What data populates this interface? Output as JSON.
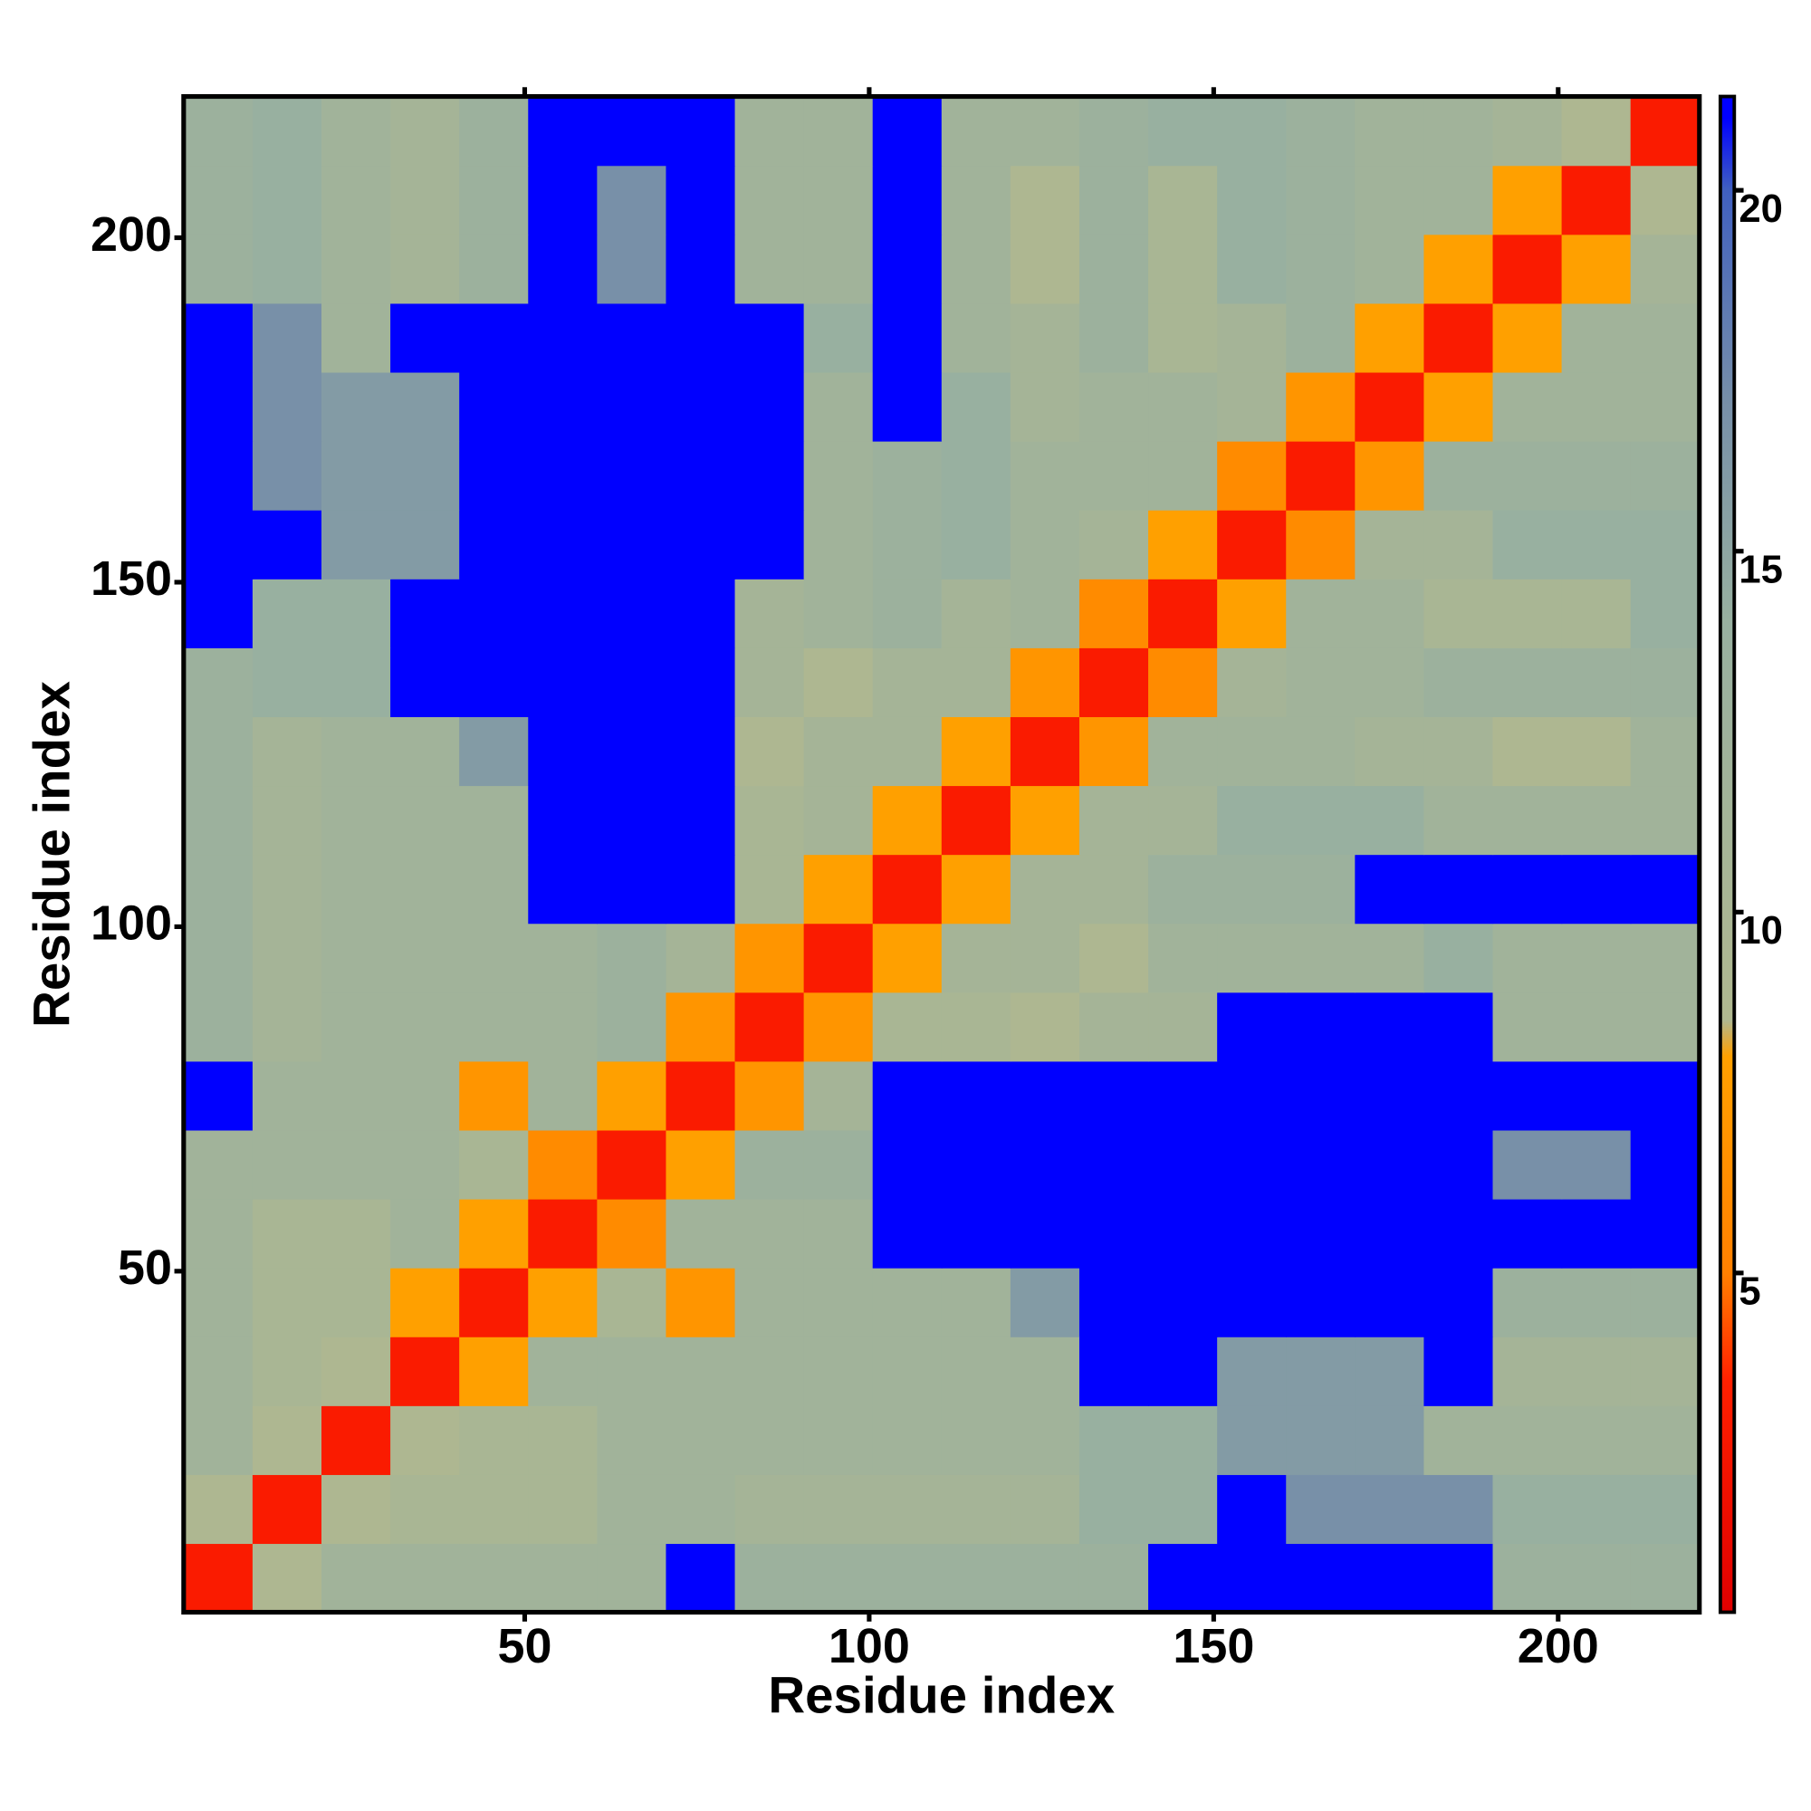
{
  "chart_data": {
    "type": "heatmap",
    "xlabel": "Residue index",
    "ylabel": "Residue index",
    "x_bins": [
      0.5,
      10.5,
      20.5,
      30.5,
      40.5,
      50.5,
      60.5,
      70.5,
      80.5,
      90.5,
      100.5,
      110.5,
      120.5,
      130.5,
      140.5,
      150.5,
      160.5,
      170.5,
      180.5,
      190.5,
      200.5,
      210.5,
      220.5
    ],
    "y_bins": [
      0.5,
      10.5,
      20.5,
      30.5,
      40.5,
      50.5,
      60.5,
      70.5,
      80.5,
      90.5,
      100.5,
      110.5,
      120.5,
      130.5,
      140.5,
      150.5,
      160.5,
      170.5,
      180.5,
      190.5,
      200.5,
      210.5,
      220.5
    ],
    "xlim": [
      0.5,
      220.5
    ],
    "ylim": [
      0.5,
      220.5
    ],
    "xticks": [
      50,
      100,
      150,
      200
    ],
    "yticks": [
      50,
      100,
      150,
      200
    ],
    "colorbar_lim": [
      0.3,
      21.3
    ],
    "colorbar_ticks": [
      5,
      10,
      15,
      20
    ],
    "colormap": [
      {
        "value": 0.3,
        "color": "#e00000"
      },
      {
        "value": 3.5,
        "color": "#ff2000"
      },
      {
        "value": 5,
        "color": "#ff8000"
      },
      {
        "value": 8,
        "color": "#ffa000"
      },
      {
        "value": 8.5,
        "color": "#b0b890"
      },
      {
        "value": 14,
        "color": "#98b0a0"
      },
      {
        "value": 17,
        "color": "#7890a8"
      },
      {
        "value": 20,
        "color": "#4060c0"
      },
      {
        "value": 21,
        "color": "#0000ff"
      },
      {
        "value": 21.3,
        "color": "#0000ff"
      }
    ],
    "values": [
      [
        3,
        9,
        12,
        12,
        12,
        12,
        12,
        21,
        13,
        13,
        13,
        13,
        13,
        13,
        21,
        21,
        21,
        21,
        21,
        13,
        13,
        13
      ],
      [
        9,
        3,
        9,
        10,
        10,
        10,
        12,
        12,
        11,
        11,
        11,
        11,
        11,
        14,
        14,
        21,
        17,
        17,
        17,
        14,
        14,
        14
      ],
      [
        12,
        9,
        3,
        9,
        10,
        10,
        12,
        12,
        12,
        12,
        12,
        12,
        12,
        14,
        14,
        16,
        16,
        16,
        12,
        12,
        12,
        12
      ],
      [
        12,
        10,
        9,
        3,
        8,
        12,
        12,
        12,
        12,
        12,
        12,
        12,
        12,
        21,
        21,
        16,
        16,
        16,
        21,
        11,
        11,
        11
      ],
      [
        12,
        10,
        10,
        8,
        3,
        8,
        10,
        7,
        12,
        12,
        12,
        12,
        16,
        21,
        21,
        21,
        21,
        21,
        21,
        13,
        13,
        13
      ],
      [
        12,
        10,
        10,
        12,
        8,
        3,
        6,
        12,
        12,
        12,
        21,
        21,
        21,
        21,
        21,
        21,
        21,
        21,
        21,
        21,
        21,
        21
      ],
      [
        12,
        12,
        12,
        12,
        10,
        6,
        3,
        8,
        13,
        13,
        21,
        21,
        21,
        21,
        21,
        21,
        21,
        21,
        21,
        17,
        17,
        21
      ],
      [
        21,
        12,
        12,
        12,
        7,
        12,
        8,
        3,
        7,
        11,
        21,
        21,
        21,
        21,
        21,
        21,
        21,
        21,
        21,
        21,
        21,
        21
      ],
      [
        13,
        11,
        12,
        12,
        12,
        12,
        13,
        7,
        3,
        7,
        10,
        10,
        9,
        11,
        11,
        21,
        21,
        21,
        21,
        12,
        12,
        12
      ],
      [
        13,
        11,
        12,
        12,
        12,
        12,
        13,
        11,
        7,
        3,
        8,
        11,
        11,
        9,
        12,
        12,
        12,
        12,
        14,
        12,
        12,
        12
      ],
      [
        13,
        11,
        12,
        12,
        12,
        21,
        21,
        21,
        10,
        8,
        3,
        8,
        11,
        11,
        13,
        13,
        13,
        21,
        21,
        21,
        21,
        21
      ],
      [
        13,
        11,
        12,
        12,
        12,
        21,
        21,
        21,
        10,
        11,
        8,
        3,
        8,
        11,
        11,
        14,
        14,
        14,
        12,
        12,
        12,
        12
      ],
      [
        13,
        11,
        12,
        12,
        16,
        21,
        21,
        21,
        9,
        11,
        11,
        8,
        3,
        7,
        12,
        12,
        12,
        11,
        11,
        9,
        9,
        12
      ],
      [
        13,
        14,
        14,
        21,
        21,
        21,
        21,
        21,
        11,
        9,
        11,
        11,
        7,
        3,
        6,
        11,
        12,
        12,
        13,
        13,
        13,
        13
      ],
      [
        21,
        14,
        14,
        21,
        21,
        21,
        21,
        21,
        11,
        12,
        13,
        11,
        12,
        6,
        3,
        8,
        12,
        12,
        10,
        10,
        10,
        14
      ],
      [
        21,
        21,
        16,
        16,
        21,
        21,
        21,
        21,
        21,
        12,
        13,
        14,
        12,
        11,
        8,
        3,
        6,
        11,
        11,
        14,
        14,
        14
      ],
      [
        21,
        17,
        16,
        16,
        21,
        21,
        21,
        21,
        21,
        12,
        13,
        14,
        12,
        12,
        12,
        6,
        3,
        7,
        13,
        13,
        13,
        13
      ],
      [
        21,
        17,
        16,
        16,
        21,
        21,
        21,
        21,
        21,
        12,
        21,
        14,
        11,
        12,
        12,
        11,
        7,
        3,
        8,
        12,
        12,
        12
      ],
      [
        21,
        17,
        12,
        21,
        21,
        21,
        21,
        21,
        21,
        14,
        21,
        12,
        11,
        13,
        10,
        11,
        13,
        8,
        3,
        8,
        12,
        12
      ],
      [
        13,
        14,
        12,
        11,
        13,
        21,
        17,
        21,
        12,
        12,
        21,
        12,
        9,
        13,
        10,
        14,
        13,
        12,
        8,
        3,
        8,
        11
      ],
      [
        13,
        14,
        12,
        11,
        13,
        21,
        17,
        21,
        12,
        12,
        21,
        12,
        9,
        13,
        10,
        14,
        13,
        12,
        12,
        8,
        3,
        9
      ],
      [
        13,
        14,
        12,
        11,
        13,
        21,
        21,
        21,
        12,
        12,
        21,
        12,
        12,
        13,
        14,
        14,
        13,
        12,
        12,
        11,
        9,
        3
      ]
    ]
  }
}
